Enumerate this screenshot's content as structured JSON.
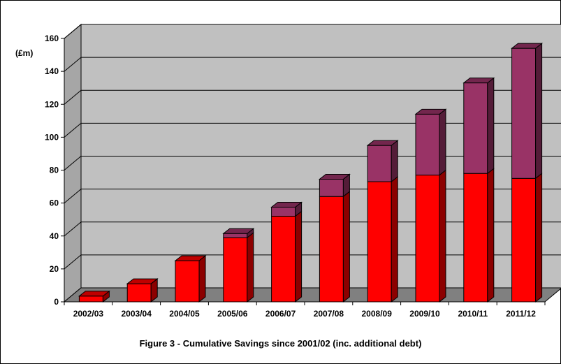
{
  "chart_data": {
    "type": "bar",
    "stacked": true,
    "three_d": true,
    "title": "Figure 3  -  Cumulative Savings since 2001/02 (inc. additional debt)",
    "ylabel": "(£m)",
    "xlabel": "",
    "ylim": [
      0,
      160
    ],
    "ytick_step": 20,
    "yticks": [
      "0",
      "20",
      "40",
      "60",
      "80",
      "100",
      "120",
      "140",
      "160"
    ],
    "grid": true,
    "legend": "none",
    "categories": [
      "2002/03",
      "2003/04",
      "2004/05",
      "2005/06",
      "2006/07",
      "2007/08",
      "2008/09",
      "2009/10",
      "2010/11",
      "2011/12"
    ],
    "series": [
      {
        "values": [
          3.5,
          11,
          25,
          39,
          52,
          64,
          73,
          77,
          78,
          75
        ],
        "color": "#ff0000"
      },
      {
        "values": [
          0,
          0,
          0,
          2.5,
          5.5,
          10.5,
          22,
          37,
          55,
          79
        ],
        "color": "#993366"
      }
    ],
    "colors": {
      "plot_back": "#c0c0c0",
      "floor": "#808080",
      "wall_side": "#a6a6a6"
    }
  }
}
